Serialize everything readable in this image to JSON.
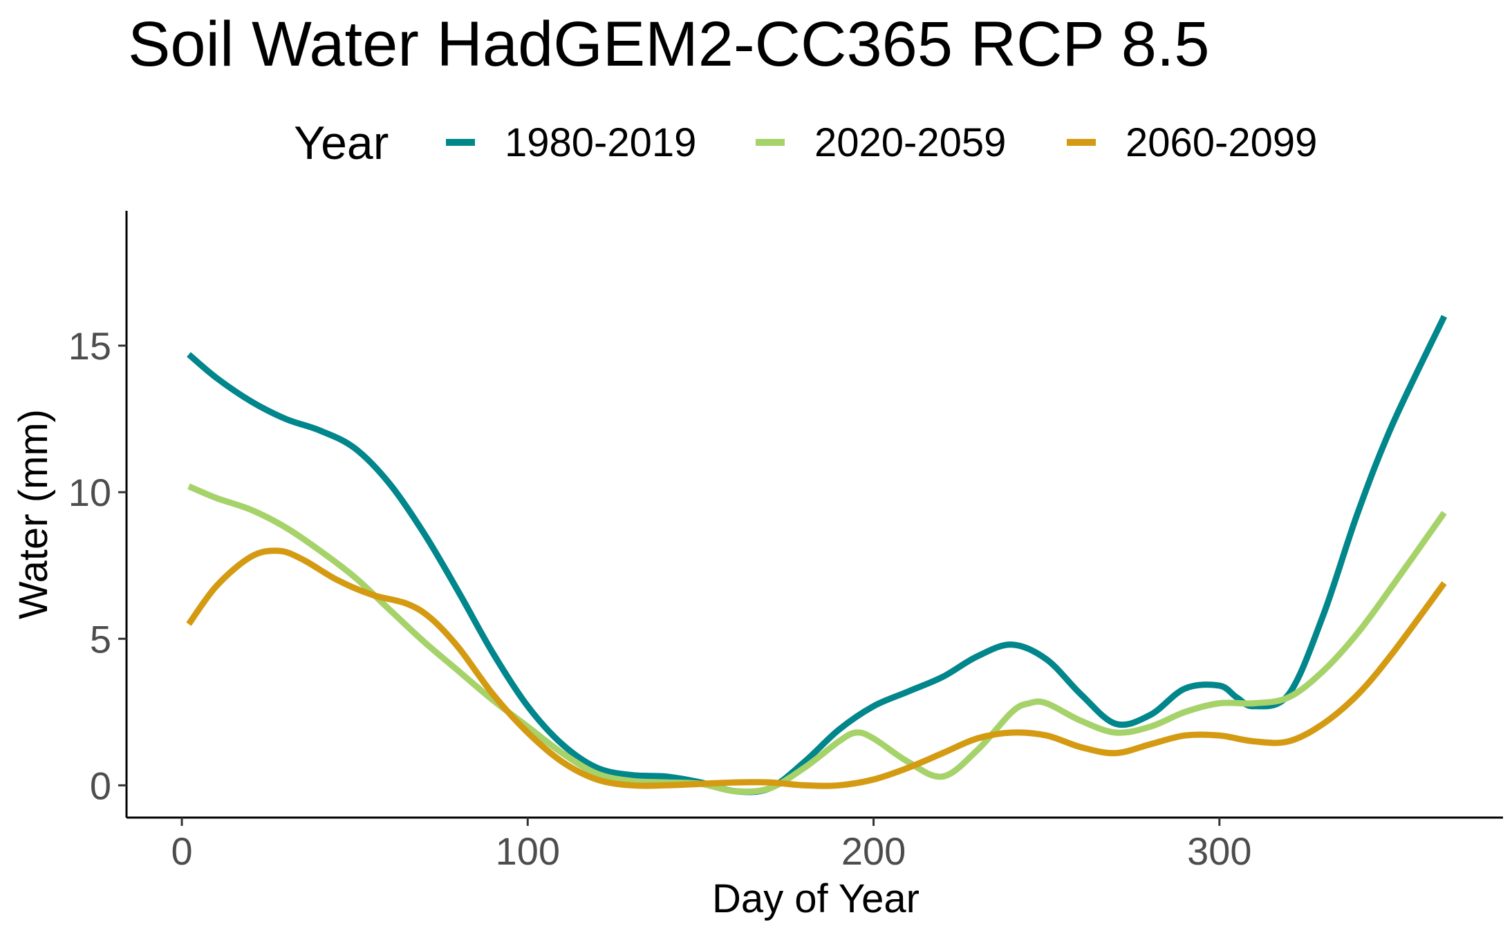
{
  "chart_data": {
    "type": "line",
    "title": "Soil Water HadGEM2-CC365 RCP 8.5",
    "xlabel": "Day of Year",
    "ylabel": "Water (mm)",
    "xlim": [
      -16,
      382
    ],
    "ylim": [
      -1.1,
      19.6
    ],
    "x_ticks": [
      0,
      100,
      200,
      300
    ],
    "x_tick_labels": [
      "0",
      "100",
      "200",
      "300"
    ],
    "y_ticks": [
      0,
      5,
      10,
      15
    ],
    "y_tick_labels": [
      "0",
      "5",
      "10",
      "15"
    ],
    "grid": false,
    "legend": {
      "title": "Year",
      "position": "top"
    },
    "series": [
      {
        "name": "1980-2019",
        "color": "#00868B",
        "x": [
          2,
          10,
          20,
          30,
          40,
          50,
          60,
          70,
          80,
          90,
          100,
          110,
          120,
          130,
          140,
          150,
          160,
          170,
          180,
          190,
          200,
          210,
          220,
          230,
          240,
          250,
          260,
          270,
          280,
          290,
          300,
          305,
          310,
          320,
          330,
          340,
          350,
          365
        ],
        "y": [
          14.7,
          13.9,
          13.1,
          12.5,
          12.1,
          11.5,
          10.3,
          8.6,
          6.6,
          4.5,
          2.7,
          1.4,
          0.6,
          0.35,
          0.3,
          0.1,
          -0.2,
          -0.1,
          0.8,
          1.9,
          2.7,
          3.2,
          3.7,
          4.4,
          4.8,
          4.3,
          3.1,
          2.1,
          2.4,
          3.3,
          3.4,
          3.0,
          2.7,
          3.1,
          5.8,
          9.3,
          12.3,
          16.0
        ]
      },
      {
        "name": "2020-2059",
        "color": "#A6D26A",
        "x": [
          2,
          10,
          20,
          30,
          40,
          50,
          60,
          70,
          80,
          90,
          100,
          110,
          120,
          130,
          140,
          150,
          160,
          170,
          180,
          190,
          195,
          200,
          210,
          220,
          230,
          240,
          245,
          250,
          260,
          270,
          280,
          290,
          300,
          310,
          320,
          330,
          340,
          350,
          365
        ],
        "y": [
          10.2,
          9.8,
          9.4,
          8.8,
          8.0,
          7.1,
          6.0,
          4.9,
          3.9,
          2.9,
          2.0,
          1.1,
          0.4,
          0.15,
          0.1,
          0.05,
          -0.2,
          -0.1,
          0.6,
          1.5,
          1.8,
          1.6,
          0.8,
          0.3,
          1.2,
          2.5,
          2.8,
          2.8,
          2.2,
          1.8,
          2.0,
          2.5,
          2.8,
          2.8,
          3.0,
          3.9,
          5.2,
          6.8,
          9.3
        ]
      },
      {
        "name": "2060-2099",
        "color": "#D49A12",
        "x": [
          2,
          10,
          20,
          28,
          35,
          45,
          55,
          65,
          72,
          80,
          90,
          100,
          110,
          120,
          130,
          140,
          150,
          160,
          170,
          180,
          190,
          200,
          210,
          220,
          230,
          240,
          250,
          260,
          270,
          280,
          290,
          300,
          310,
          320,
          330,
          340,
          350,
          365
        ],
        "y": [
          5.5,
          6.8,
          7.8,
          8.0,
          7.7,
          7.0,
          6.5,
          6.2,
          5.7,
          4.7,
          3.1,
          1.8,
          0.8,
          0.2,
          0.0,
          0.0,
          0.05,
          0.1,
          0.1,
          0.0,
          0.0,
          0.2,
          0.6,
          1.1,
          1.6,
          1.8,
          1.7,
          1.3,
          1.1,
          1.4,
          1.7,
          1.7,
          1.5,
          1.5,
          2.1,
          3.1,
          4.5,
          6.9
        ]
      }
    ]
  }
}
